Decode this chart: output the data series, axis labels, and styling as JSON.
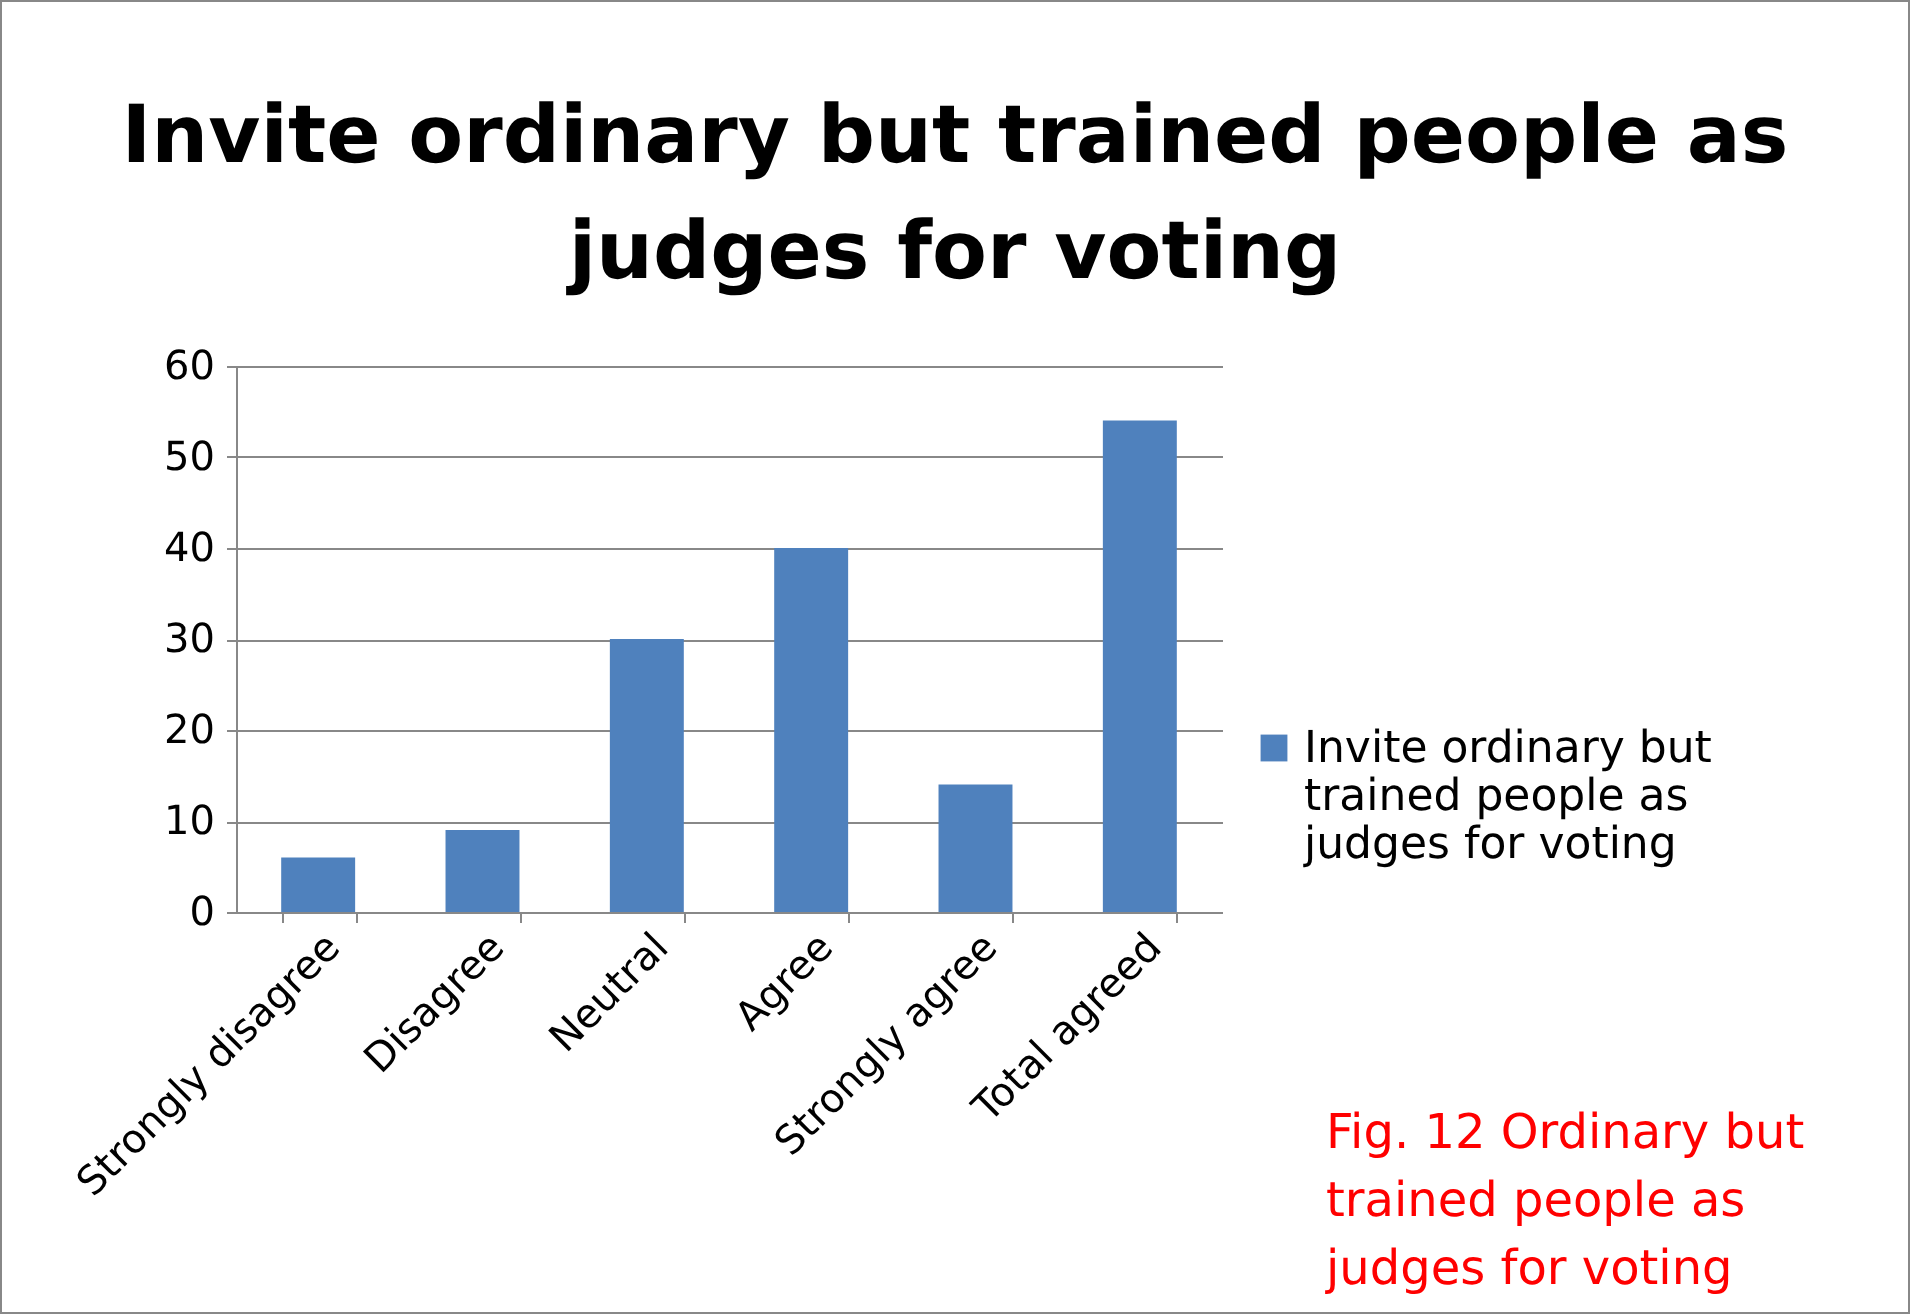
{
  "chart_data": {
    "type": "bar",
    "title": "Invite ordinary but trained people as judges for voting",
    "categories": [
      "Strongly disagree",
      "Disagree",
      "Neutral",
      "Agree",
      "Strongly agree",
      "Total agreed"
    ],
    "series": [
      {
        "name": "Invite ordinary but trained people as judges for voting",
        "color": "#4f81bd",
        "values": [
          6,
          9,
          30,
          40,
          14,
          54
        ]
      }
    ],
    "ylim": [
      0,
      60
    ],
    "yticks": [
      0,
      10,
      20,
      30,
      40,
      50,
      60
    ],
    "grid": "y",
    "legend": "right",
    "annotations": [
      "Fig. 12 Ordinary but trained people as judges for voting"
    ]
  }
}
